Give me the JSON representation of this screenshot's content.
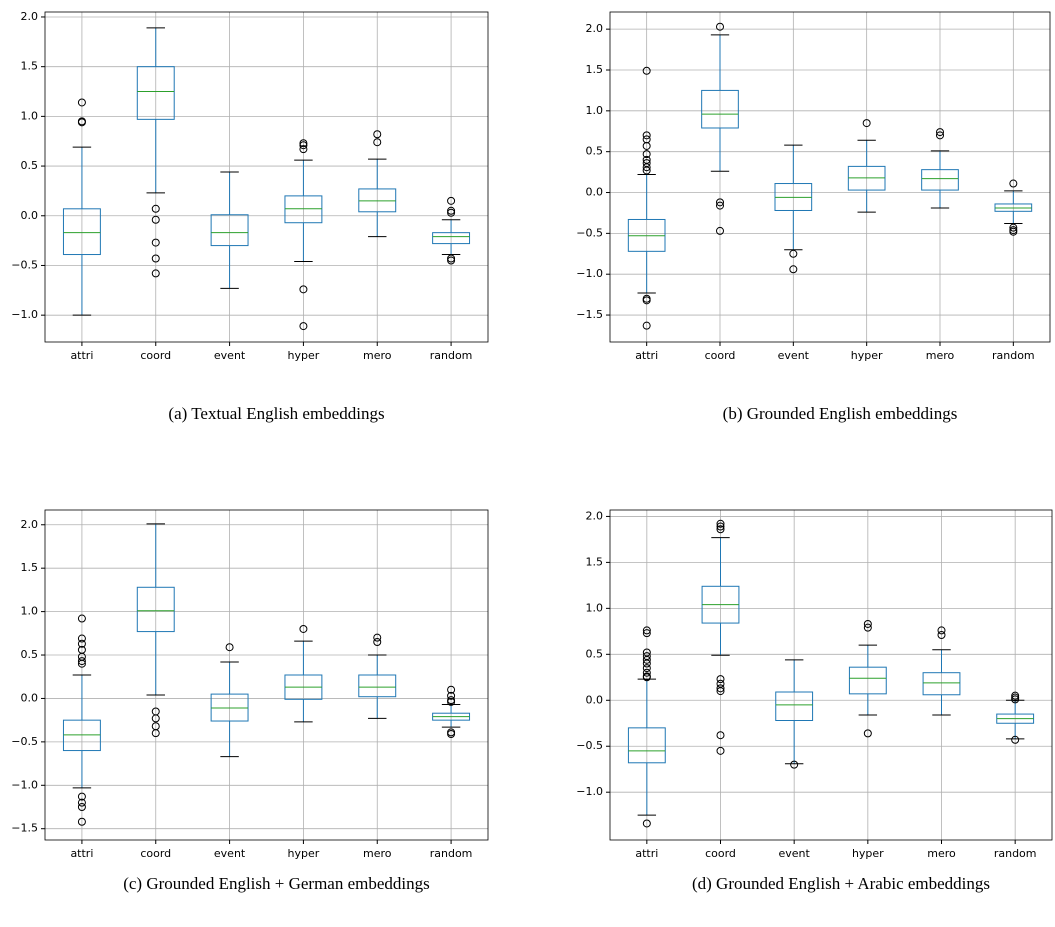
{
  "chart_data": [
    {
      "type": "box",
      "caption": "(a)  Textual English embeddings",
      "categories": [
        "attri",
        "coord",
        "event",
        "hyper",
        "mero",
        "random"
      ],
      "box_color": "#1f77b4",
      "median_color": "#2ca02c",
      "grid": true,
      "ylim": [
        -1.27,
        2.05
      ],
      "yticks": [
        {
          "value": -1,
          "label": "−1.0"
        },
        {
          "value": -0.5,
          "label": "−0.5"
        },
        {
          "value": 0,
          "label": "0.0"
        },
        0.5,
        {
          "value": 1,
          "label": "1.0"
        },
        1.5,
        {
          "value": 2,
          "label": "2.0"
        }
      ],
      "boxes": [
        {
          "whislo": -1.0,
          "q1": -0.39,
          "med": -0.17,
          "q3": 0.07,
          "whishi": 0.69,
          "fliers": [
            0.95,
            0.94,
            1.14
          ]
        },
        {
          "whislo": 0.23,
          "q1": 0.97,
          "med": 1.25,
          "q3": 1.5,
          "whishi": 1.89,
          "fliers": [
            0.07,
            -0.04,
            -0.27,
            -0.43,
            -0.58
          ]
        },
        {
          "whislo": -0.73,
          "q1": -0.3,
          "med": -0.17,
          "q3": 0.01,
          "whishi": 0.44,
          "fliers": []
        },
        {
          "whislo": -0.46,
          "q1": -0.07,
          "med": 0.07,
          "q3": 0.2,
          "whishi": 0.56,
          "fliers": [
            0.73,
            0.71,
            0.67,
            -0.74,
            -1.11
          ]
        },
        {
          "whislo": -0.21,
          "q1": 0.04,
          "med": 0.15,
          "q3": 0.27,
          "whishi": 0.57,
          "fliers": [
            0.82,
            0.74
          ]
        },
        {
          "whislo": -0.39,
          "q1": -0.28,
          "med": -0.21,
          "q3": -0.17,
          "whishi": -0.04,
          "fliers": [
            0.15,
            0.05,
            0.03,
            -0.43,
            -0.45
          ]
        }
      ]
    },
    {
      "type": "box",
      "caption": "(b)  Grounded English embeddings",
      "categories": [
        "attri",
        "coord",
        "event",
        "hyper",
        "mero",
        "random"
      ],
      "box_color": "#1f77b4",
      "median_color": "#2ca02c",
      "grid": true,
      "ylim": [
        -1.83,
        2.21
      ],
      "yticks": [
        {
          "value": -1.5,
          "label": "−1.5"
        },
        {
          "value": -1,
          "label": "−1.0"
        },
        {
          "value": -0.5,
          "label": "−0.5"
        },
        {
          "value": 0,
          "label": "0.0"
        },
        0.5,
        {
          "value": 1,
          "label": "1.0"
        },
        1.5,
        {
          "value": 2,
          "label": "2.0"
        }
      ],
      "boxes": [
        {
          "whislo": -1.23,
          "q1": -0.72,
          "med": -0.53,
          "q3": -0.33,
          "whishi": 0.22,
          "fliers": [
            1.49,
            0.7,
            0.65,
            0.57,
            0.47,
            0.4,
            0.36,
            0.31,
            0.27,
            -1.3,
            -1.32,
            -1.63
          ]
        },
        {
          "whislo": 0.26,
          "q1": 0.79,
          "med": 0.96,
          "q3": 1.25,
          "whishi": 1.93,
          "fliers": [
            2.03,
            -0.12,
            -0.16,
            -0.47
          ]
        },
        {
          "whislo": -0.7,
          "q1": -0.22,
          "med": -0.06,
          "q3": 0.11,
          "whishi": 0.58,
          "fliers": [
            -0.75,
            -0.94
          ]
        },
        {
          "whislo": -0.24,
          "q1": 0.03,
          "med": 0.18,
          "q3": 0.32,
          "whishi": 0.64,
          "fliers": [
            0.85
          ]
        },
        {
          "whislo": -0.19,
          "q1": 0.03,
          "med": 0.17,
          "q3": 0.28,
          "whishi": 0.51,
          "fliers": [
            0.74,
            0.7
          ]
        },
        {
          "whislo": -0.38,
          "q1": -0.23,
          "med": -0.19,
          "q3": -0.14,
          "whishi": 0.02,
          "fliers": [
            0.11,
            -0.43,
            -0.46,
            -0.48
          ]
        }
      ]
    },
    {
      "type": "box",
      "caption": "(c)  Grounded English + German embeddings",
      "categories": [
        "attri",
        "coord",
        "event",
        "hyper",
        "mero",
        "random"
      ],
      "box_color": "#1f77b4",
      "median_color": "#2ca02c",
      "grid": true,
      "ylim": [
        -1.63,
        2.17
      ],
      "yticks": [
        {
          "value": -1.5,
          "label": "−1.5"
        },
        {
          "value": -1,
          "label": "−1.0"
        },
        {
          "value": -0.5,
          "label": "−0.5"
        },
        {
          "value": 0,
          "label": "0.0"
        },
        0.5,
        {
          "value": 1,
          "label": "1.0"
        },
        1.5,
        {
          "value": 2,
          "label": "2.0"
        }
      ],
      "boxes": [
        {
          "whislo": -1.03,
          "q1": -0.6,
          "med": -0.42,
          "q3": -0.25,
          "whishi": 0.27,
          "fliers": [
            0.92,
            0.69,
            0.63,
            0.56,
            0.48,
            0.43,
            0.4,
            -1.13,
            -1.2,
            -1.25,
            -1.42
          ]
        },
        {
          "whislo": 0.04,
          "q1": 0.77,
          "med": 1.01,
          "q3": 1.28,
          "whishi": 2.01,
          "fliers": [
            -0.15,
            -0.23,
            -0.32,
            -0.4
          ]
        },
        {
          "whislo": -0.67,
          "q1": -0.26,
          "med": -0.11,
          "q3": 0.05,
          "whishi": 0.42,
          "fliers": [
            0.59
          ]
        },
        {
          "whislo": -0.27,
          "q1": -0.01,
          "med": 0.13,
          "q3": 0.27,
          "whishi": 0.66,
          "fliers": [
            0.8
          ]
        },
        {
          "whislo": -0.23,
          "q1": 0.02,
          "med": 0.13,
          "q3": 0.27,
          "whishi": 0.5,
          "fliers": [
            0.7,
            0.65
          ]
        },
        {
          "whislo": -0.33,
          "q1": -0.25,
          "med": -0.21,
          "q3": -0.17,
          "whishi": -0.07,
          "fliers": [
            0.1,
            0.03,
            -0.02,
            -0.04,
            -0.39,
            -0.41
          ]
        }
      ]
    },
    {
      "type": "box",
      "caption": "(d)  Grounded English + Arabic embeddings",
      "categories": [
        "attri",
        "coord",
        "event",
        "hyper",
        "mero",
        "random"
      ],
      "box_color": "#1f77b4",
      "median_color": "#2ca02c",
      "grid": true,
      "ylim": [
        -1.52,
        2.07
      ],
      "yticks": [
        {
          "value": -1,
          "label": "−1.0"
        },
        {
          "value": -0.5,
          "label": "−0.5"
        },
        {
          "value": 0,
          "label": "0.0"
        },
        0.5,
        {
          "value": 1,
          "label": "1.0"
        },
        1.5,
        {
          "value": 2,
          "label": "2.0"
        }
      ],
      "boxes": [
        {
          "whislo": -1.25,
          "q1": -0.68,
          "med": -0.55,
          "q3": -0.3,
          "whishi": 0.23,
          "fliers": [
            0.76,
            0.73,
            0.52,
            0.48,
            0.44,
            0.4,
            0.35,
            0.3,
            0.26,
            0.25,
            -1.34
          ]
        },
        {
          "whislo": 0.49,
          "q1": 0.84,
          "med": 1.04,
          "q3": 1.24,
          "whishi": 1.77,
          "fliers": [
            1.92,
            1.89,
            1.86,
            0.23,
            0.18,
            0.13,
            0.1,
            -0.38,
            -0.55
          ]
        },
        {
          "whislo": -0.69,
          "q1": -0.22,
          "med": -0.05,
          "q3": 0.09,
          "whishi": 0.44,
          "fliers": [
            -0.7
          ]
        },
        {
          "whislo": -0.16,
          "q1": 0.07,
          "med": 0.24,
          "q3": 0.36,
          "whishi": 0.6,
          "fliers": [
            0.83,
            0.79,
            -0.36
          ]
        },
        {
          "whislo": -0.16,
          "q1": 0.06,
          "med": 0.19,
          "q3": 0.3,
          "whishi": 0.55,
          "fliers": [
            0.76,
            0.71
          ]
        },
        {
          "whislo": -0.42,
          "q1": -0.25,
          "med": -0.2,
          "q3": -0.15,
          "whishi": 0.0,
          "fliers": [
            0.05,
            0.03,
            0.01,
            -0.43
          ]
        }
      ]
    }
  ]
}
